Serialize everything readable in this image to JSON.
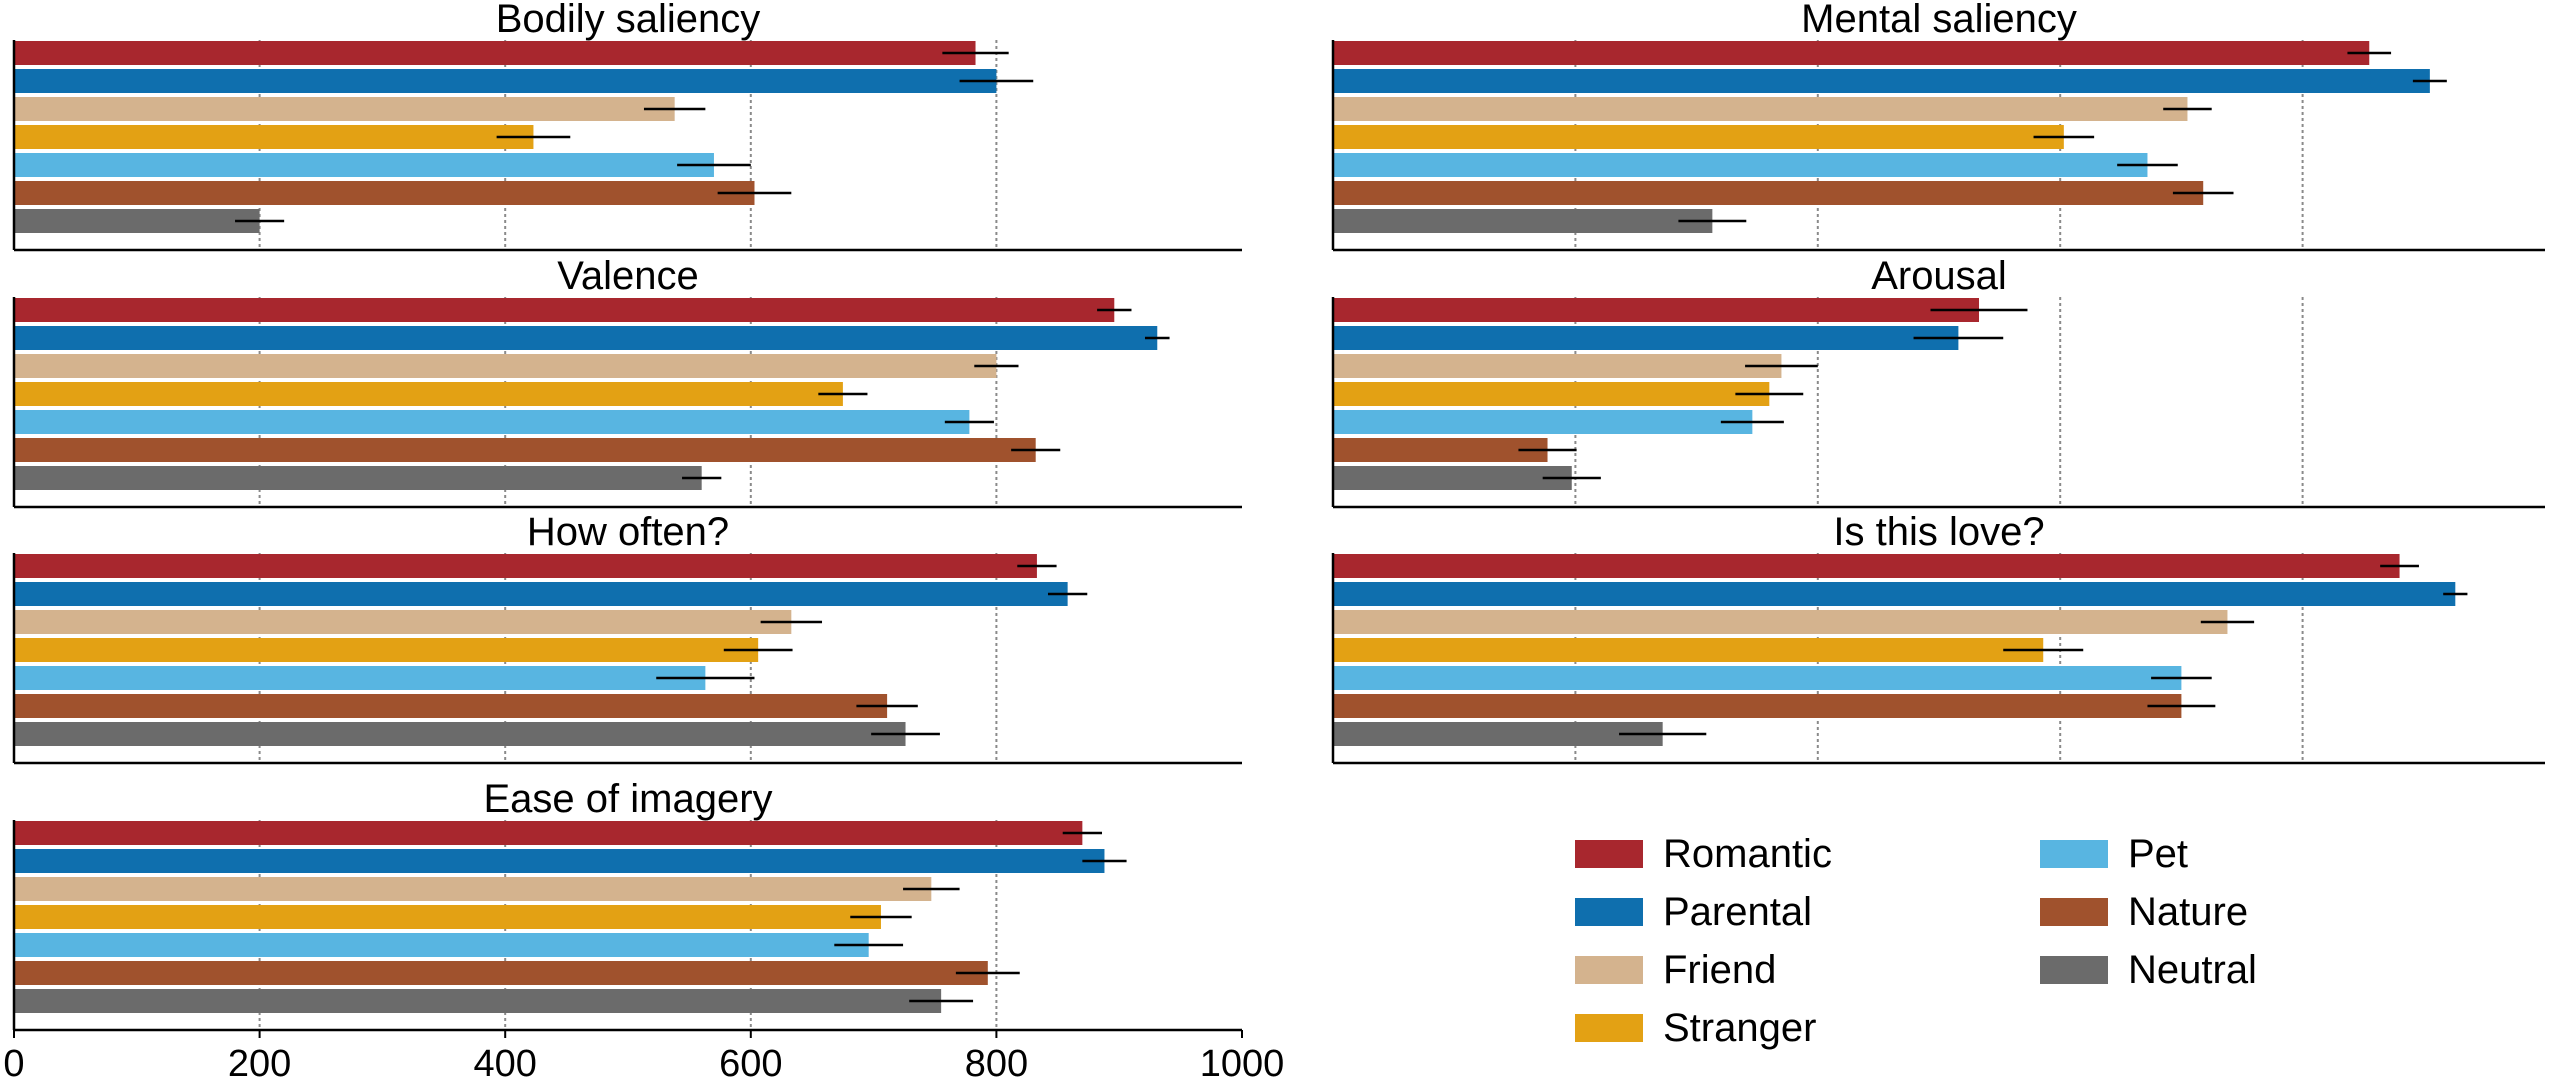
{
  "colors": {
    "Romantic": "#a8272e",
    "Parental": "#0f6fae",
    "Friend": "#d4b38e",
    "Stranger": "#e3a114",
    "Pet": "#58b5e1",
    "Nature": "#a0522d",
    "Neutral": "#6b6b6b"
  },
  "legend": {
    "items": [
      "Romantic",
      "Parental",
      "Friend",
      "Stranger",
      "Pet",
      "Nature",
      "Neutral"
    ],
    "placement": "bottom-right"
  },
  "chart_data": [
    {
      "type": "bar",
      "orientation": "horizontal",
      "title": "Bodily saliency",
      "categories": [
        "Romantic",
        "Parental",
        "Friend",
        "Stranger",
        "Pet",
        "Nature",
        "Neutral"
      ],
      "values": [
        783,
        800,
        538,
        423,
        570,
        603,
        200
      ],
      "errors": [
        27,
        30,
        25,
        30,
        30,
        30,
        20
      ],
      "xlim": [
        0,
        1000
      ],
      "xticks": [],
      "grid": true
    },
    {
      "type": "bar",
      "orientation": "horizontal",
      "title": "Mental saliency",
      "categories": [
        "Romantic",
        "Parental",
        "Friend",
        "Stranger",
        "Pet",
        "Nature",
        "Neutral"
      ],
      "values": [
        855,
        905,
        705,
        603,
        672,
        718,
        313
      ],
      "errors": [
        18,
        14,
        20,
        25,
        25,
        25,
        28
      ],
      "xlim": [
        0,
        1000
      ],
      "xticks": [],
      "grid": true
    },
    {
      "type": "bar",
      "orientation": "horizontal",
      "title": "Valence",
      "categories": [
        "Romantic",
        "Parental",
        "Friend",
        "Stranger",
        "Pet",
        "Nature",
        "Neutral"
      ],
      "values": [
        896,
        931,
        800,
        675,
        778,
        832,
        560
      ],
      "errors": [
        14,
        10,
        18,
        20,
        20,
        20,
        16
      ],
      "xlim": [
        0,
        1000
      ],
      "xticks": [],
      "grid": true
    },
    {
      "type": "bar",
      "orientation": "horizontal",
      "title": "Arousal",
      "categories": [
        "Romantic",
        "Parental",
        "Friend",
        "Stranger",
        "Pet",
        "Nature",
        "Neutral"
      ],
      "values": [
        533,
        516,
        370,
        360,
        346,
        177,
        197
      ],
      "errors": [
        40,
        37,
        30,
        28,
        26,
        24,
        24
      ],
      "xlim": [
        0,
        1000
      ],
      "xticks": [],
      "grid": true
    },
    {
      "type": "bar",
      "orientation": "horizontal",
      "title": "How often?",
      "categories": [
        "Romantic",
        "Parental",
        "Friend",
        "Stranger",
        "Pet",
        "Nature",
        "Neutral"
      ],
      "values": [
        833,
        858,
        633,
        606,
        563,
        711,
        726
      ],
      "errors": [
        16,
        16,
        25,
        28,
        40,
        25,
        28
      ],
      "xlim": [
        0,
        1000
      ],
      "xticks": [],
      "grid": true
    },
    {
      "type": "bar",
      "orientation": "horizontal",
      "title": "Is this love?",
      "categories": [
        "Romantic",
        "Parental",
        "Friend",
        "Stranger",
        "Pet",
        "Nature",
        "Neutral"
      ],
      "values": [
        880,
        926,
        738,
        586,
        700,
        700,
        272
      ],
      "errors": [
        16,
        10,
        22,
        33,
        25,
        28,
        36
      ],
      "xlim": [
        0,
        1000
      ],
      "xticks": [],
      "grid": true
    },
    {
      "type": "bar",
      "orientation": "horizontal",
      "title": "Ease of imagery",
      "categories": [
        "Romantic",
        "Parental",
        "Friend",
        "Stranger",
        "Pet",
        "Nature",
        "Neutral"
      ],
      "values": [
        870,
        888,
        747,
        706,
        696,
        793,
        755
      ],
      "errors": [
        16,
        18,
        23,
        25,
        28,
        26,
        26
      ],
      "xlim": [
        0,
        1000
      ],
      "xticks": [
        "0",
        "200",
        "400",
        "600",
        "800",
        "1000"
      ],
      "grid": true
    }
  ]
}
